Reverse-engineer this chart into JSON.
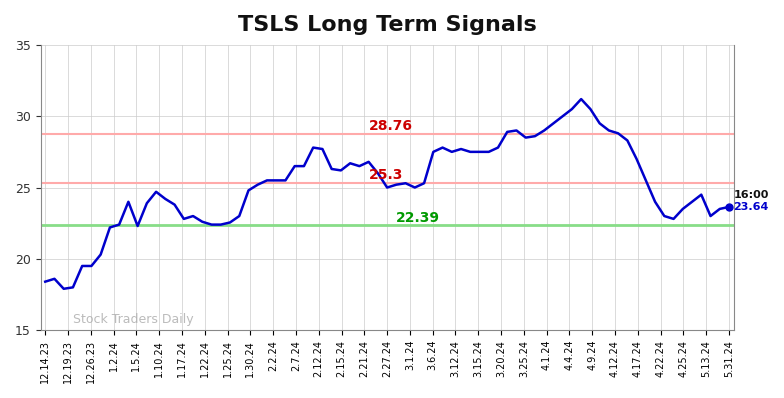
{
  "title": "TSLS Long Term Signals",
  "title_fontsize": 16,
  "title_fontweight": "bold",
  "ylabel_range": [
    15,
    35
  ],
  "yticks": [
    15,
    20,
    25,
    30,
    35
  ],
  "background_color": "#ffffff",
  "plot_bg_color": "#ffffff",
  "grid_color": "#cccccc",
  "line_color": "#0000cc",
  "line_width": 1.8,
  "hline_upper": 28.76,
  "hline_upper_color": "#ffaaaa",
  "hline_middle": 25.3,
  "hline_middle_color": "#ffaaaa",
  "hline_lower": 22.39,
  "hline_lower_color": "#88dd88",
  "annotation_upper_text": "28.76",
  "annotation_upper_color": "#cc0000",
  "annotation_middle_text": "25.3",
  "annotation_middle_color": "#cc0000",
  "annotation_lower_text": "22.39",
  "annotation_lower_color": "#009900",
  "watermark_text": "Stock Traders Daily",
  "watermark_color": "#aaaaaa",
  "end_label_time": "16:00",
  "end_label_price": "23.64",
  "end_dot_color": "#0000cc",
  "x_labels": [
    "12.14.23",
    "12.19.23",
    "12.26.23",
    "1.2.24",
    "1.5.24",
    "1.10.24",
    "1.17.24",
    "1.22.24",
    "1.25.24",
    "1.30.24",
    "2.2.24",
    "2.7.24",
    "2.12.24",
    "2.15.24",
    "2.21.24",
    "2.27.24",
    "3.1.24",
    "3.6.24",
    "3.12.24",
    "3.15.24",
    "3.20.24",
    "3.25.24",
    "4.1.24",
    "4.4.24",
    "4.9.24",
    "4.12.24",
    "4.17.24",
    "4.22.24",
    "4.25.24",
    "5.13.24",
    "5.31.24"
  ],
  "prices": [
    18.4,
    18.6,
    17.9,
    18.0,
    19.5,
    19.5,
    20.3,
    22.2,
    22.4,
    24.0,
    22.3,
    23.9,
    24.7,
    24.2,
    23.8,
    22.8,
    23.0,
    22.6,
    22.4,
    22.4,
    22.55,
    23.0,
    24.8,
    25.2,
    25.5,
    25.5,
    25.5,
    26.5,
    26.5,
    27.8,
    27.7,
    26.3,
    26.2,
    26.7,
    26.5,
    26.8,
    26.0,
    25.0,
    25.2,
    25.3,
    25.0,
    25.3,
    27.5,
    27.8,
    27.5,
    27.7,
    27.5,
    27.5,
    27.5,
    27.8,
    28.9,
    29.0,
    28.5,
    28.6,
    29.0,
    29.5,
    30.0,
    30.5,
    31.2,
    30.5,
    29.5,
    29.0,
    28.8,
    28.3,
    27.0,
    25.5,
    24.0,
    23.0,
    22.8,
    23.5,
    24.0,
    24.5,
    23.0,
    23.5,
    23.64
  ]
}
